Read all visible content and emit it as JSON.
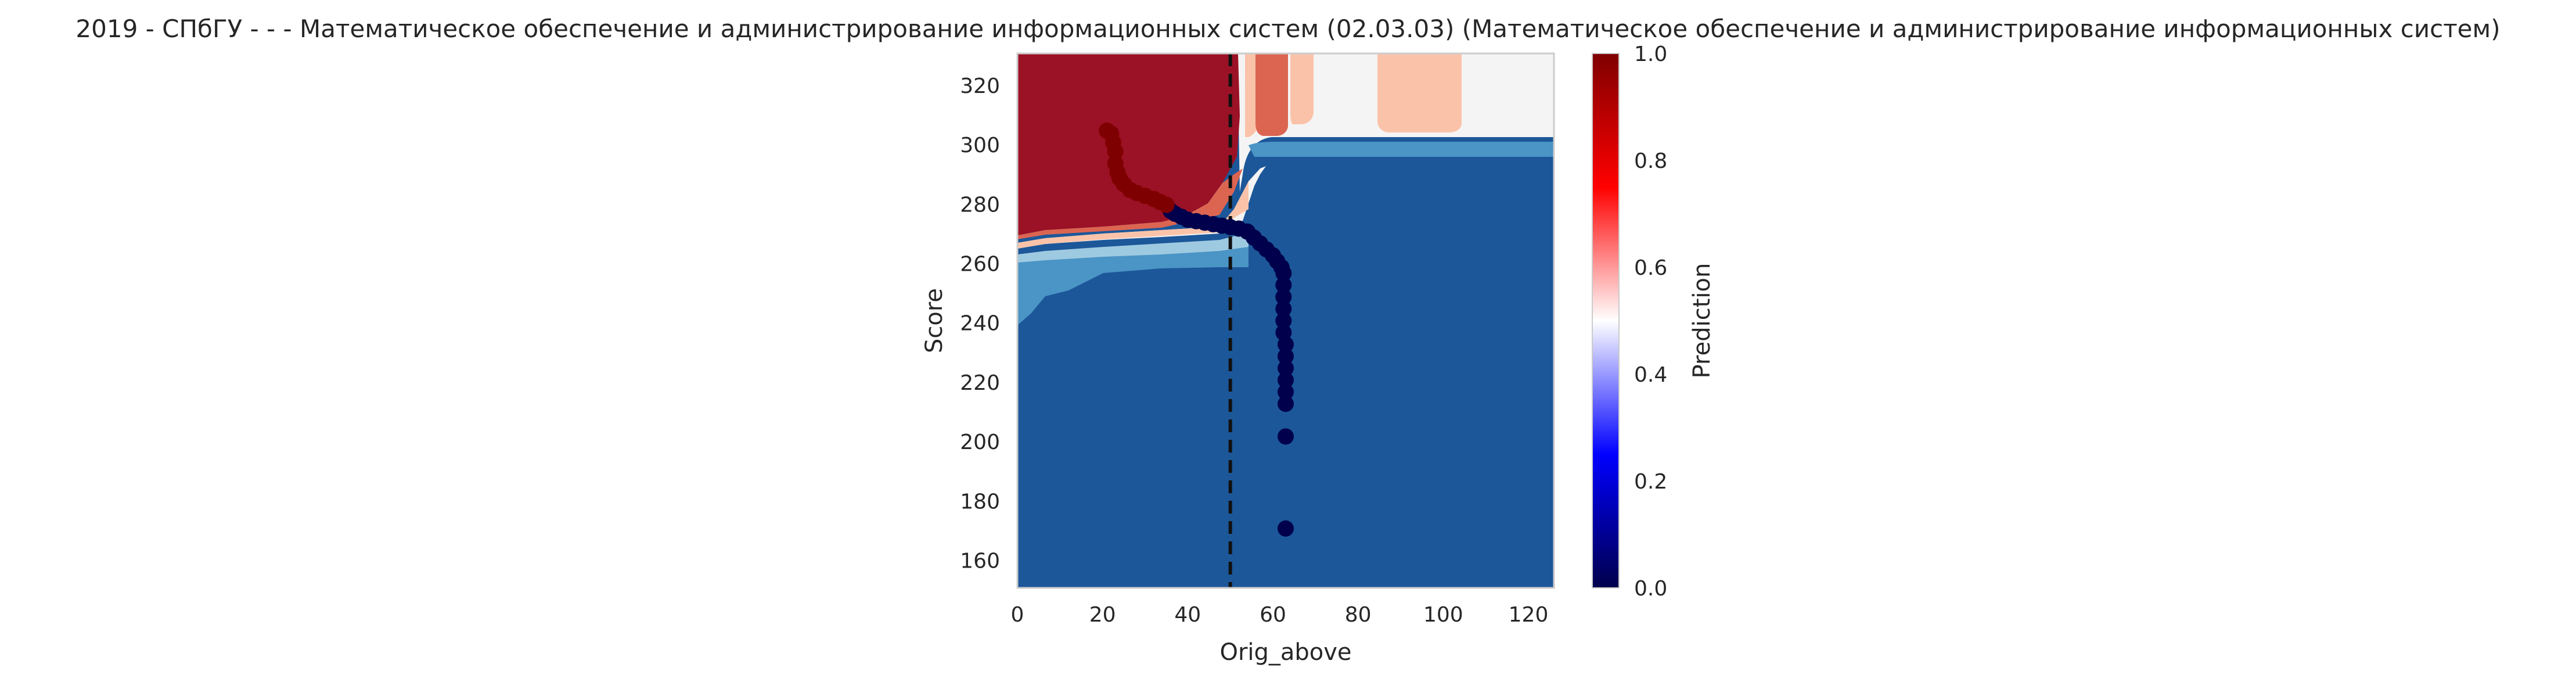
{
  "chart_data": {
    "type": "scatter",
    "title": "2019 - СПбГУ - - - Математическое обеспечение и администрирование информационных систем (02.03.03) (Математическое обеспечение и администрирование информационных систем)",
    "xlabel": "Orig_above",
    "ylabel": "Score",
    "xlim": [
      0,
      126
    ],
    "ylim": [
      150,
      330
    ],
    "x_ticks": [
      "0",
      "20",
      "40",
      "60",
      "80",
      "100",
      "120"
    ],
    "y_ticks": [
      "160",
      "180",
      "200",
      "220",
      "240",
      "260",
      "280",
      "300",
      "320"
    ],
    "grid": false,
    "colorbar": {
      "label": "Prediction",
      "range": [
        0,
        1
      ],
      "ticks": [
        "0.0",
        "0.2",
        "0.4",
        "0.6",
        "0.8",
        "1.0"
      ],
      "colormap": "seismic"
    },
    "threshold_line": {
      "x": 50,
      "style": "dashed",
      "color": "#111111"
    },
    "background_contour": {
      "colormap": "RdBu_r",
      "regions": [
        {
          "name": "low-prediction region",
          "color": "#1c5799"
        },
        {
          "name": "high-prediction region",
          "color": "#9b1125"
        },
        {
          "name": "neutral region",
          "color": "#f4f4f4"
        },
        {
          "name": "light red patch",
          "color": "#fac3a9"
        },
        {
          "name": "medium red patch",
          "color": "#dc6552"
        }
      ]
    },
    "points": {
      "colormap": "seismic",
      "high_color": "#7f0000",
      "low_color": "#00004c",
      "high": [
        {
          "x": 21,
          "y": 304
        },
        {
          "x": 22,
          "y": 303
        },
        {
          "x": 22.5,
          "y": 300
        },
        {
          "x": 23,
          "y": 297
        },
        {
          "x": 23,
          "y": 293
        },
        {
          "x": 23.5,
          "y": 290
        },
        {
          "x": 24,
          "y": 288
        },
        {
          "x": 25,
          "y": 286
        },
        {
          "x": 26.5,
          "y": 284
        },
        {
          "x": 28,
          "y": 283
        },
        {
          "x": 30,
          "y": 282
        },
        {
          "x": 32,
          "y": 281
        },
        {
          "x": 33.5,
          "y": 280
        },
        {
          "x": 35,
          "y": 279
        }
      ],
      "low": [
        {
          "x": 36,
          "y": 277
        },
        {
          "x": 37,
          "y": 276
        },
        {
          "x": 38.5,
          "y": 275
        },
        {
          "x": 40,
          "y": 274
        },
        {
          "x": 42,
          "y": 273.5
        },
        {
          "x": 44,
          "y": 273
        },
        {
          "x": 46,
          "y": 272.5
        },
        {
          "x": 48,
          "y": 272
        },
        {
          "x": 50,
          "y": 271.5
        },
        {
          "x": 52,
          "y": 271
        },
        {
          "x": 54,
          "y": 270
        },
        {
          "x": 55.5,
          "y": 268
        },
        {
          "x": 57,
          "y": 266
        },
        {
          "x": 58.5,
          "y": 264
        },
        {
          "x": 60,
          "y": 262
        },
        {
          "x": 61,
          "y": 260
        },
        {
          "x": 62,
          "y": 258
        },
        {
          "x": 62.5,
          "y": 256
        },
        {
          "x": 62.5,
          "y": 252
        },
        {
          "x": 62.5,
          "y": 248
        },
        {
          "x": 62.5,
          "y": 244
        },
        {
          "x": 62.5,
          "y": 240
        },
        {
          "x": 62.5,
          "y": 236
        },
        {
          "x": 63,
          "y": 232
        },
        {
          "x": 63,
          "y": 228
        },
        {
          "x": 63,
          "y": 224
        },
        {
          "x": 63,
          "y": 220
        },
        {
          "x": 63,
          "y": 216
        },
        {
          "x": 63,
          "y": 212
        },
        {
          "x": 63,
          "y": 201
        },
        {
          "x": 63,
          "y": 170
        }
      ]
    }
  }
}
